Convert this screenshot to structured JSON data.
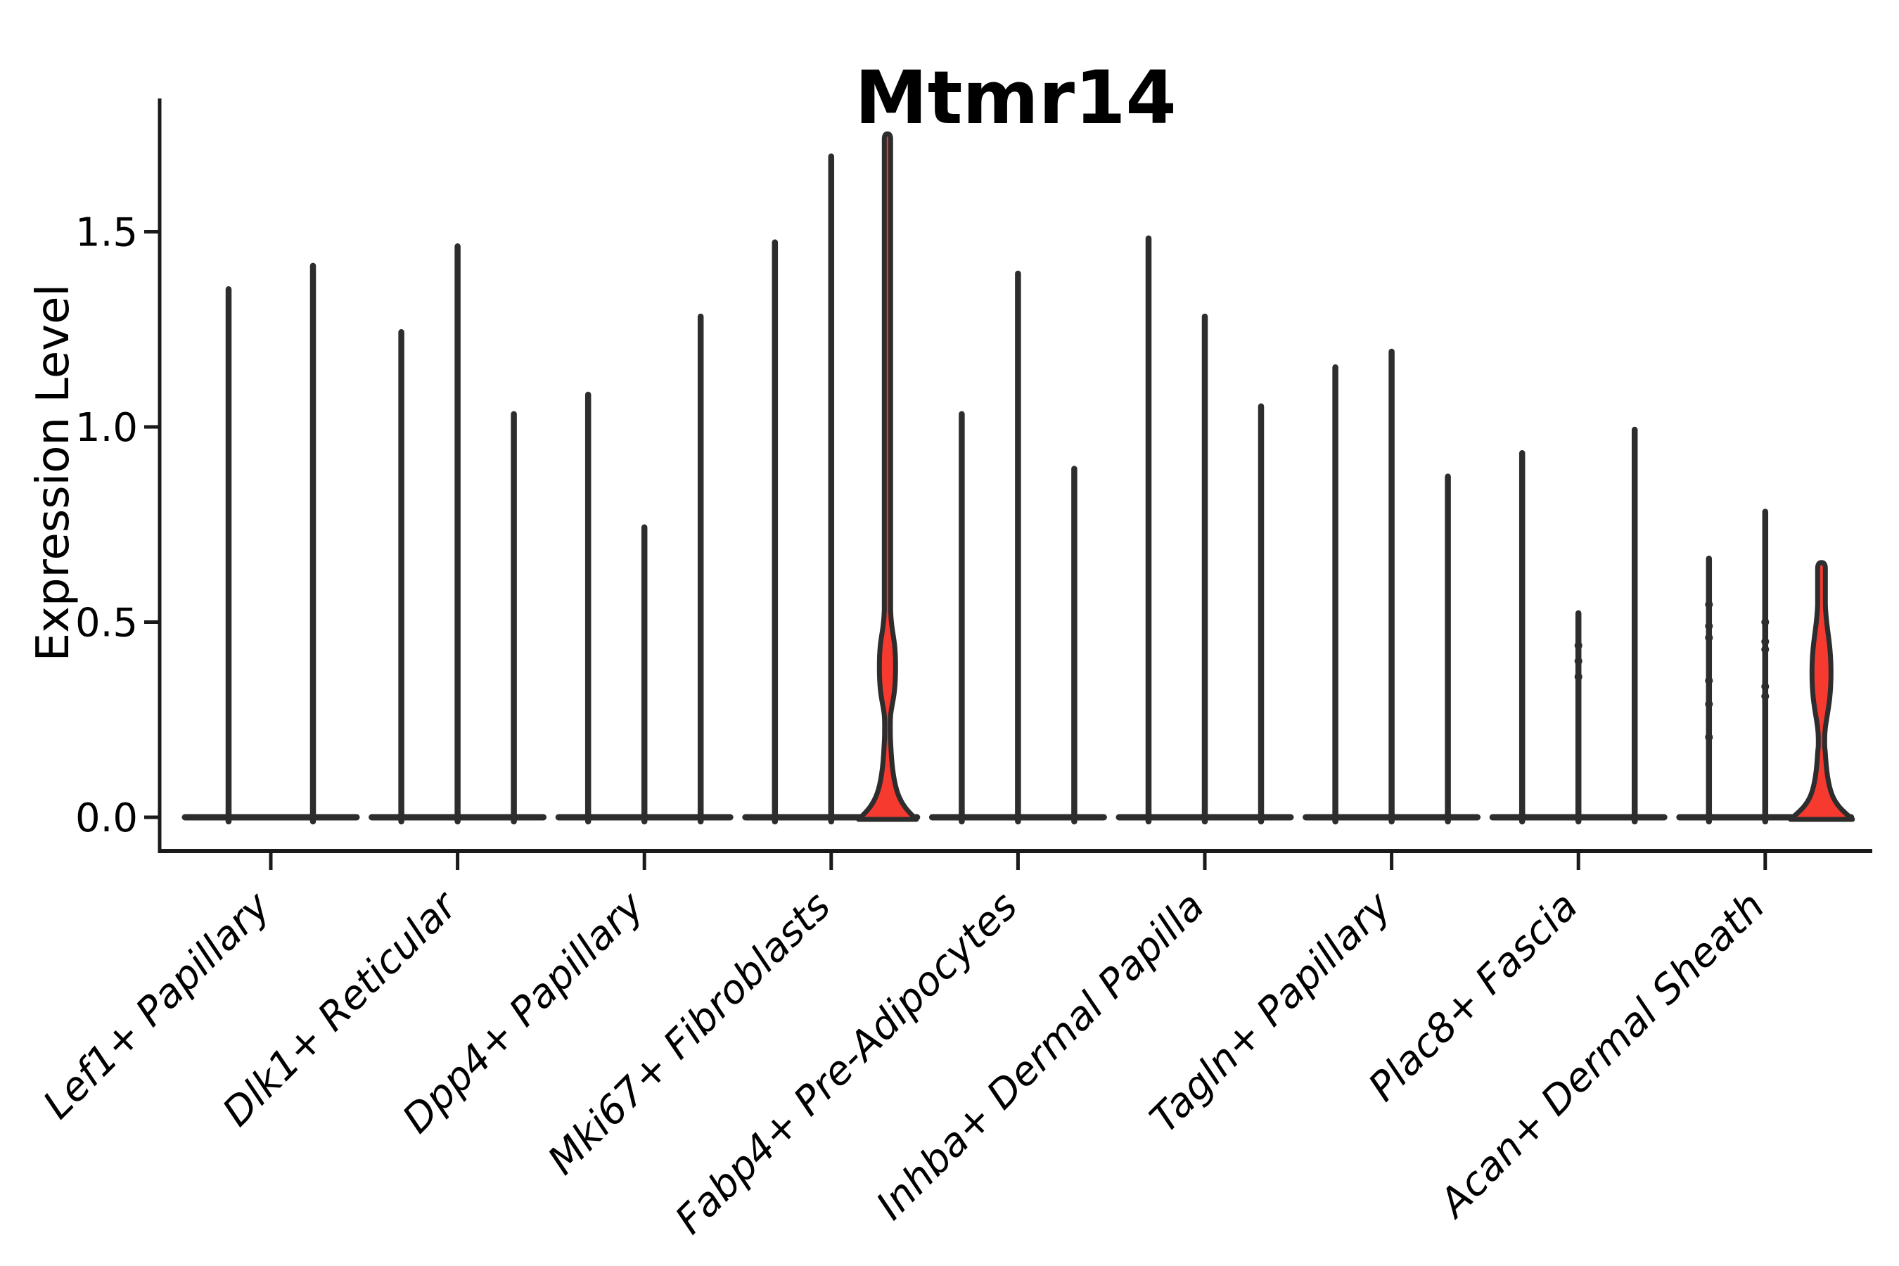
{
  "title": "Mtmr14",
  "axes": {
    "ylabel": "Expression Level",
    "ytick_labels": [
      "0.0",
      "0.5",
      "1.0",
      "1.5"
    ]
  },
  "colors": {
    "highlight_fill": "#f73a30",
    "violin_edge": "#2d2d2d",
    "axis": "#1a1a1a",
    "text": "#000000",
    "background": "#ffffff"
  },
  "chart_data": {
    "type": "violin",
    "title": "Mtmr14",
    "xlabel": "",
    "ylabel": "Expression Level",
    "ylim": [
      -0.09,
      1.84
    ],
    "yticks": [
      0.0,
      0.5,
      1.0,
      1.5
    ],
    "grid": false,
    "legend": "none",
    "description": "Violin plot of Mtmr14 expression; most violins collapse to a flat baseline at 0 with a thin spike to the maximum expressed value; two violins (3rd of Mki67+ Fibroblasts and 3rd of Acan+ Dermal Sheath) have a visible red-filled density body near 0-0.55.",
    "categories": [
      "Lef1+ Papillary",
      "Dlk1+ Reticular",
      "Dpp4+ Papillary",
      "Mki67+ Fibroblasts",
      "Fabp4+ Pre-Adipocytes",
      "Inhba+ Dermal Papilla",
      "Tagln+ Papillary",
      "Plac8+ Fascia",
      "Acan+ Dermal Sheath"
    ],
    "groups": [
      {
        "category": "Lef1+ Papillary",
        "violins": [
          {
            "offset": -60,
            "max": 1.36
          },
          {
            "offset": 60,
            "max": 1.42
          }
        ]
      },
      {
        "category": "Dlk1+ Reticular",
        "violins": [
          {
            "offset": -80,
            "max": 1.25
          },
          {
            "offset": 0,
            "max": 1.47
          },
          {
            "offset": 80,
            "max": 1.04
          }
        ]
      },
      {
        "category": "Dpp4+ Papillary",
        "violins": [
          {
            "offset": -80,
            "max": 1.09
          },
          {
            "offset": 0,
            "max": 0.75
          },
          {
            "offset": 80,
            "max": 1.29
          }
        ]
      },
      {
        "category": "Mki67+ Fibroblasts",
        "violins": [
          {
            "offset": -80,
            "max": 1.48
          },
          {
            "offset": 0,
            "max": 1.7
          },
          {
            "offset": 80,
            "max": 1.75,
            "highlight": true,
            "body": {
              "base_hw": 41,
              "pinch_v": 0.16,
              "neck_hw": 5.5,
              "bulge_lo": 0.24,
              "bulge_peak": 0.385,
              "bulge_hi": 0.53,
              "bulge_hw": 11.5,
              "tip_hw": 4.5
            }
          }
        ]
      },
      {
        "category": "Fabp4+ Pre-Adipocytes",
        "violins": [
          {
            "offset": -80,
            "max": 1.04
          },
          {
            "offset": 0,
            "max": 1.4
          },
          {
            "offset": 80,
            "max": 0.9
          }
        ]
      },
      {
        "category": "Inhba+ Dermal Papilla",
        "violins": [
          {
            "offset": -80,
            "max": 1.49
          },
          {
            "offset": 0,
            "max": 1.29
          },
          {
            "offset": 80,
            "max": 1.06
          }
        ]
      },
      {
        "category": "Tagln+ Papillary",
        "violins": [
          {
            "offset": -80,
            "max": 1.16
          },
          {
            "offset": 0,
            "max": 1.2
          },
          {
            "offset": 80,
            "max": 0.88
          }
        ]
      },
      {
        "category": "Plac8+ Fascia",
        "violins": [
          {
            "offset": -80,
            "max": 0.94
          },
          {
            "offset": 0,
            "max": 0.53,
            "points": [
              0.44,
              0.4,
              0.36
            ]
          },
          {
            "offset": 80,
            "max": 1.0
          }
        ]
      },
      {
        "category": "Acan+ Dermal Sheath",
        "violins": [
          {
            "offset": -80,
            "max": 0.67,
            "points": [
              0.545,
              0.49,
              0.46,
              0.35,
              0.29,
              0.205
            ]
          },
          {
            "offset": 0,
            "max": 0.79,
            "points": [
              0.5,
              0.45,
              0.43,
              0.335,
              0.31
            ]
          },
          {
            "offset": 80,
            "max": 0.65,
            "highlight": true,
            "body": {
              "base_hw": 44,
              "pinch_v": 0.15,
              "neck_hw": 6,
              "bulge_lo": 0.2,
              "bulge_peak": 0.37,
              "bulge_hi": 0.545,
              "bulge_hw": 13.5,
              "tip_hw": 5.5
            }
          }
        ]
      }
    ]
  }
}
